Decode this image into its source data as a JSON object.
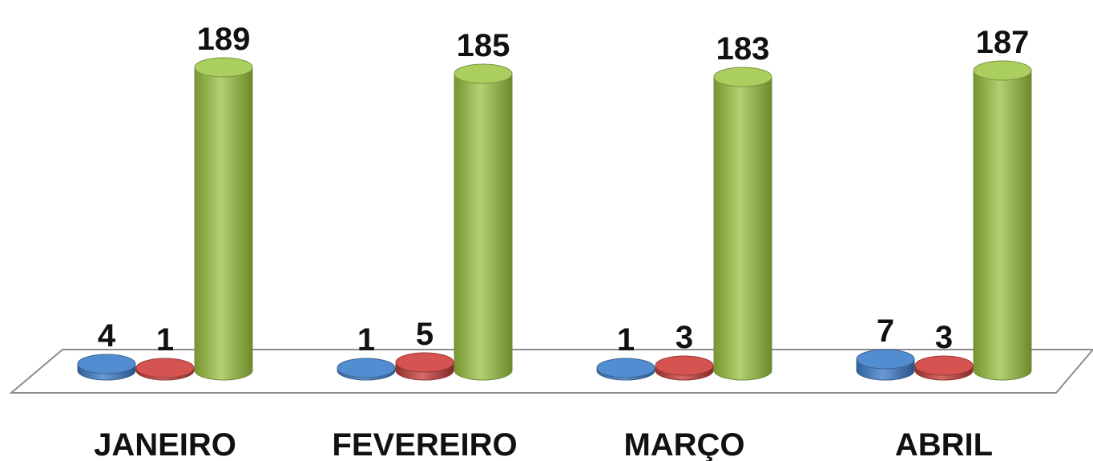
{
  "chart_data": {
    "type": "bar",
    "style": "3d-cylinder",
    "categories": [
      "JANEIRO",
      "FEVEREIRO",
      "MARÇO",
      "ABRIL"
    ],
    "series": [
      {
        "values": [
          4,
          1,
          1,
          7
        ],
        "color": "#4a7ebb"
      },
      {
        "values": [
          1,
          5,
          3,
          3
        ],
        "color": "#be4b48"
      },
      {
        "values": [
          189,
          185,
          183,
          187
        ],
        "color": "#98b954"
      }
    ],
    "title": "",
    "xlabel": "",
    "ylabel": "",
    "ylim": [
      0,
      200
    ],
    "grid": false,
    "legend": "none",
    "data_labels": true
  }
}
